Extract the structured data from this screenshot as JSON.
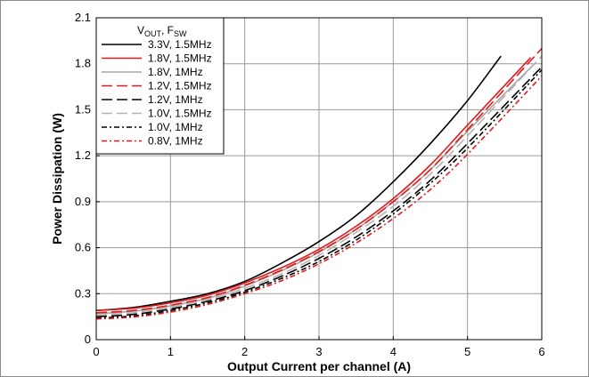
{
  "chart_data": {
    "type": "line",
    "xlabel": "Output Current per channel (A)",
    "ylabel": "Power Dissipation (W)",
    "xlim": [
      0,
      6
    ],
    "ylim": [
      0,
      2.1
    ],
    "xticks": [
      "0",
      "1",
      "2",
      "3",
      "4",
      "5",
      "6"
    ],
    "yticks": [
      "0",
      "0.3",
      "0.6",
      "0.9",
      "1.2",
      "1.5",
      "1.8",
      "2.1"
    ],
    "grid": true,
    "legend": {
      "position": "top-left",
      "title_main": "V",
      "title_sub1": "OUT",
      "title_sep": ", F",
      "title_sub2": "SW"
    },
    "series": [
      {
        "name": "3.3V, 1.5MHz",
        "color": "#000000",
        "dash": "solid",
        "x": [
          0,
          0.5,
          1,
          1.5,
          2,
          2.5,
          3,
          3.5,
          4,
          4.5,
          5,
          5.45
        ],
        "y": [
          0.19,
          0.21,
          0.25,
          0.3,
          0.38,
          0.5,
          0.64,
          0.81,
          1.03,
          1.28,
          1.56,
          1.85
        ]
      },
      {
        "name": "1.8V, 1.5MHz",
        "color": "#e31a1c",
        "dash": "solid",
        "x": [
          0,
          0.5,
          1,
          1.5,
          2,
          2.5,
          3,
          3.5,
          4,
          4.5,
          5,
          5.85
        ],
        "y": [
          0.19,
          0.205,
          0.24,
          0.29,
          0.37,
          0.47,
          0.59,
          0.74,
          0.92,
          1.14,
          1.4,
          1.84
        ]
      },
      {
        "name": "1.8V, 1MHz",
        "color": "#a6a6a6",
        "dash": "solid",
        "x": [
          0,
          0.5,
          1,
          1.5,
          2,
          2.5,
          3,
          3.5,
          4,
          4.5,
          5,
          5.9
        ],
        "y": [
          0.17,
          0.185,
          0.22,
          0.27,
          0.35,
          0.45,
          0.57,
          0.72,
          0.9,
          1.11,
          1.36,
          1.8
        ]
      },
      {
        "name": "1.2V, 1.5MHz",
        "color": "#e31a1c",
        "dash": "long",
        "x": [
          0,
          0.5,
          1,
          1.5,
          2,
          2.5,
          3,
          3.5,
          4,
          4.5,
          5,
          6.0
        ],
        "y": [
          0.175,
          0.19,
          0.225,
          0.275,
          0.355,
          0.455,
          0.575,
          0.72,
          0.9,
          1.11,
          1.37,
          1.9
        ]
      },
      {
        "name": "1.2V, 1MHz",
        "color": "#000000",
        "dash": "long",
        "x": [
          0,
          0.5,
          1,
          1.5,
          2,
          2.5,
          3,
          3.5,
          4,
          4.5,
          5,
          6.0
        ],
        "y": [
          0.15,
          0.165,
          0.2,
          0.25,
          0.32,
          0.415,
          0.53,
          0.67,
          0.84,
          1.04,
          1.28,
          1.78
        ]
      },
      {
        "name": "1.0V, 1.5MHz",
        "color": "#b3b3b3",
        "dash": "long",
        "x": [
          0,
          0.5,
          1,
          1.5,
          2,
          2.5,
          3,
          3.5,
          4,
          4.5,
          5,
          6.0
        ],
        "y": [
          0.16,
          0.175,
          0.21,
          0.26,
          0.335,
          0.43,
          0.55,
          0.7,
          0.87,
          1.08,
          1.33,
          1.85
        ]
      },
      {
        "name": "1.0V, 1MHz",
        "color": "#000000",
        "dash": "dashdot",
        "x": [
          0,
          0.5,
          1,
          1.5,
          2,
          2.5,
          3,
          3.5,
          4,
          4.5,
          5,
          6.0
        ],
        "y": [
          0.14,
          0.155,
          0.19,
          0.24,
          0.31,
          0.4,
          0.51,
          0.65,
          0.82,
          1.02,
          1.25,
          1.76
        ]
      },
      {
        "name": "0.8V, 1MHz",
        "color": "#e31a1c",
        "dash": "dashdot",
        "x": [
          0,
          0.5,
          1,
          1.5,
          2,
          2.5,
          3,
          3.5,
          4,
          4.5,
          5,
          6.0
        ],
        "y": [
          0.135,
          0.148,
          0.18,
          0.23,
          0.3,
          0.385,
          0.495,
          0.63,
          0.79,
          0.98,
          1.21,
          1.72
        ]
      }
    ]
  }
}
